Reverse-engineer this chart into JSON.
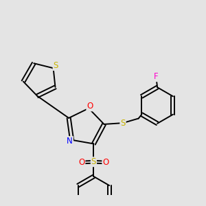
{
  "bg_color": "#e4e4e4",
  "bond_color": "#000000",
  "atom_colors": {
    "S": "#c8b400",
    "O": "#ff0000",
    "N": "#0000ff",
    "F": "#ff00cc",
    "C": "#000000"
  },
  "font_size": 8.5,
  "bond_width": 1.4,
  "dbo": 0.06
}
